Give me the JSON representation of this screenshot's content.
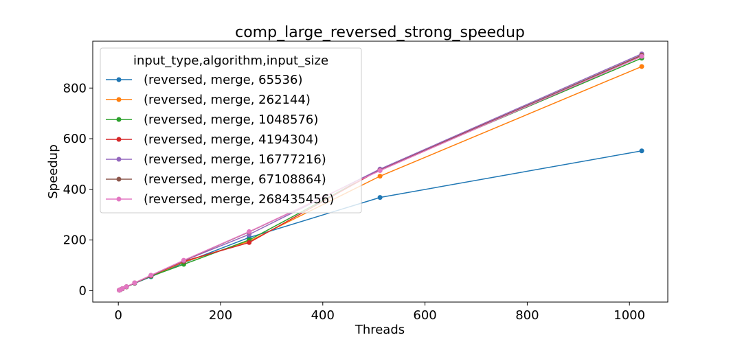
{
  "chart_data": {
    "type": "line",
    "title": "comp_large_reversed_strong_speedup",
    "xlabel": "Threads",
    "ylabel": "Speedup",
    "xlim": [
      -50,
      1075
    ],
    "ylim": [
      -45,
      985
    ],
    "xticks": [
      0,
      200,
      400,
      600,
      800,
      1000
    ],
    "yticks": [
      0,
      200,
      400,
      600,
      800
    ],
    "grid": false,
    "legend": {
      "title": "input_type,algorithm,input_size",
      "position": "top-left"
    },
    "x": [
      2,
      4,
      8,
      16,
      32,
      64,
      128,
      256,
      512,
      1024
    ],
    "series": [
      {
        "name": "(reversed, merge, 65536)",
        "color": "#1f77b4",
        "values": [
          1.9,
          3.8,
          7.5,
          14.5,
          29,
          55,
          110,
          210,
          368,
          552
        ]
      },
      {
        "name": "(reversed, merge, 262144)",
        "color": "#ff7f0e",
        "values": [
          1.9,
          3.9,
          7.7,
          15,
          30,
          58,
          113,
          195,
          452,
          885
        ]
      },
      {
        "name": "(reversed, merge, 1048576)",
        "color": "#2ca02c",
        "values": [
          1.9,
          3.8,
          7.6,
          14.8,
          29.5,
          57,
          104,
          200,
          478,
          918
        ]
      },
      {
        "name": "(reversed, merge, 4194304)",
        "color": "#d62728",
        "values": [
          2,
          3.9,
          7.8,
          15.2,
          30,
          59,
          116,
          190,
          478,
          928
        ]
      },
      {
        "name": "(reversed, merge, 16777216)",
        "color": "#9467bd",
        "values": [
          2,
          4,
          7.9,
          15.5,
          30.5,
          60,
          118,
          222,
          480,
          935
        ]
      },
      {
        "name": "(reversed, merge, 67108864)",
        "color": "#8c564b",
        "values": [
          2,
          4,
          7.9,
          15.6,
          30.8,
          60,
          119,
          232,
          475,
          930
        ]
      },
      {
        "name": "(reversed, merge, 268435456)",
        "color": "#e377c2",
        "values": [
          2,
          4,
          8,
          15.7,
          31,
          61,
          120,
          233,
          474,
          925
        ]
      }
    ]
  }
}
